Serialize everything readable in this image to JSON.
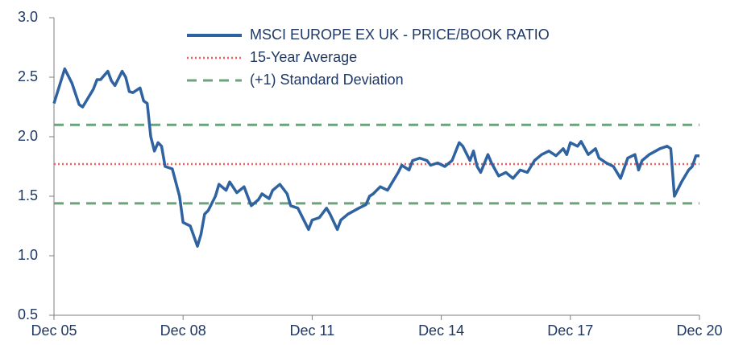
{
  "chart_data": {
    "type": "line",
    "x": [
      0,
      3,
      5,
      7,
      8,
      11,
      12,
      13,
      15,
      16,
      17,
      19,
      20,
      21,
      22,
      24,
      25,
      26,
      27,
      28,
      29,
      30,
      31,
      33,
      35,
      36,
      38,
      40,
      41,
      42,
      43,
      45,
      46,
      48,
      49,
      51,
      53,
      54,
      55,
      57,
      58,
      60,
      61,
      63,
      65,
      66,
      68,
      71,
      72,
      74,
      76,
      77,
      79,
      80,
      82,
      85,
      87,
      88,
      89,
      91,
      93,
      94,
      96,
      97,
      99,
      100,
      102,
      104,
      105,
      107,
      109,
      111,
      113,
      114,
      116,
      117,
      118,
      119,
      121,
      122,
      124,
      126,
      128,
      130,
      132,
      134,
      136,
      138,
      140,
      142,
      143,
      144,
      146,
      147,
      149,
      151,
      152,
      154,
      156,
      158,
      160,
      162,
      163,
      164,
      166,
      169,
      171,
      172,
      173,
      175,
      177,
      178,
      179,
      180
    ],
    "series": [
      {
        "name": "MSCI EUROPE EX UK - PRICE/BOOK RATIO",
        "color": "#2e62a0",
        "values": [
          2.28,
          2.57,
          2.45,
          2.27,
          2.25,
          2.4,
          2.48,
          2.48,
          2.55,
          2.47,
          2.43,
          2.55,
          2.5,
          2.38,
          2.37,
          2.41,
          2.3,
          2.28,
          2.0,
          1.88,
          1.95,
          1.92,
          1.75,
          1.73,
          1.5,
          1.28,
          1.25,
          1.08,
          1.18,
          1.35,
          1.38,
          1.5,
          1.6,
          1.55,
          1.62,
          1.53,
          1.58,
          1.5,
          1.42,
          1.47,
          1.52,
          1.48,
          1.55,
          1.6,
          1.52,
          1.42,
          1.4,
          1.22,
          1.3,
          1.32,
          1.4,
          1.35,
          1.22,
          1.3,
          1.35,
          1.4,
          1.43,
          1.5,
          1.52,
          1.58,
          1.55,
          1.6,
          1.7,
          1.76,
          1.72,
          1.8,
          1.82,
          1.8,
          1.76,
          1.78,
          1.75,
          1.8,
          1.95,
          1.92,
          1.8,
          1.88,
          1.75,
          1.7,
          1.85,
          1.78,
          1.67,
          1.7,
          1.65,
          1.72,
          1.7,
          1.8,
          1.85,
          1.88,
          1.84,
          1.9,
          1.85,
          1.95,
          1.92,
          1.96,
          1.85,
          1.9,
          1.82,
          1.78,
          1.75,
          1.65,
          1.82,
          1.85,
          1.72,
          1.8,
          1.85,
          1.9,
          1.92,
          1.9,
          1.5,
          1.62,
          1.72,
          1.75,
          1.84,
          1.84
        ]
      }
    ],
    "hlines": [
      {
        "name": "15-Year Average",
        "color": "#f0605d",
        "style": "dotted",
        "values": [
          1.77
        ]
      },
      {
        "name": "(+1) Standard Deviation",
        "color": "#6ba37a",
        "style": "dashed",
        "values": [
          2.1,
          1.44
        ]
      }
    ],
    "xlim": [
      0,
      180
    ],
    "xticks": [
      {
        "value": 0,
        "label": "Dec 05"
      },
      {
        "value": 36,
        "label": "Dec 08"
      },
      {
        "value": 72,
        "label": "Dec 11"
      },
      {
        "value": 108,
        "label": "Dec 14"
      },
      {
        "value": 144,
        "label": "Dec 17"
      },
      {
        "value": 180,
        "label": "Dec 20"
      }
    ],
    "ylim": [
      0.5,
      3
    ],
    "yticks": [
      {
        "value": 0.5,
        "label": "0.5"
      },
      {
        "value": 1,
        "label": "1.0"
      },
      {
        "value": 1.5,
        "label": "1.5"
      },
      {
        "value": 2,
        "label": "2.0"
      },
      {
        "value": 2.5,
        "label": "2.5"
      },
      {
        "value": 3,
        "label": "3.0"
      }
    ]
  }
}
